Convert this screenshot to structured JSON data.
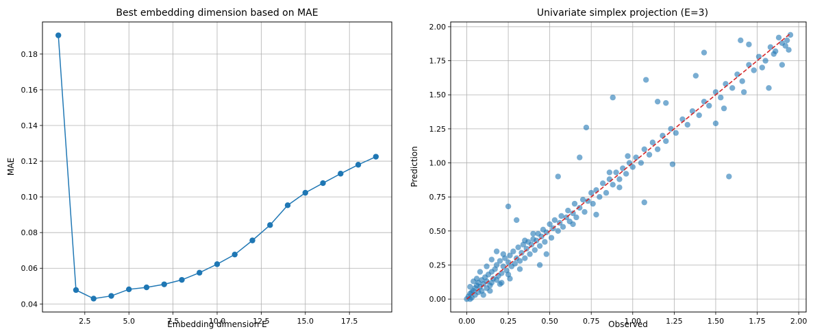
{
  "chart_data": [
    {
      "type": "line",
      "title": "Best embedding dimension based on MAE",
      "xlabel": "Embedding dimension E",
      "ylabel": "MAE",
      "xlim": [
        0.1,
        19.9
      ],
      "ylim": [
        0.0355,
        0.198
      ],
      "xticks": [
        2.5,
        5.0,
        7.5,
        10.0,
        12.5,
        15.0,
        17.5
      ],
      "xtick_labels": [
        "2.5",
        "5.0",
        "7.5",
        "10.0",
        "12.5",
        "15.0",
        "17.5"
      ],
      "yticks": [
        0.04,
        0.06,
        0.08,
        0.1,
        0.12,
        0.14,
        0.16,
        0.18
      ],
      "ytick_labels": [
        "0.04",
        "0.06",
        "0.08",
        "0.10",
        "0.12",
        "0.14",
        "0.16",
        "0.18"
      ],
      "grid": true,
      "color": "#1f77b4",
      "marker": "circle",
      "series": [
        {
          "x": [
            1,
            2,
            3,
            4,
            5,
            6,
            7,
            8,
            9,
            10,
            11,
            12,
            13,
            14,
            15,
            16,
            17,
            18,
            19
          ],
          "values": [
            0.1905,
            0.0478,
            0.043,
            0.0445,
            0.0482,
            0.0493,
            0.051,
            0.0535,
            0.0575,
            0.0623,
            0.0677,
            0.0756,
            0.0842,
            0.0953,
            0.1023,
            0.1077,
            0.113,
            0.118,
            0.1225
          ]
        }
      ]
    },
    {
      "type": "scatter",
      "title": "Univariate simplex projection (E=3)",
      "xlabel": "Observed",
      "ylabel": "Prediction",
      "xlim": [
        -0.097,
        2.045
      ],
      "ylim": [
        -0.095,
        2.035
      ],
      "xticks": [
        0.0,
        0.25,
        0.5,
        0.75,
        1.0,
        1.25,
        1.5,
        1.75,
        2.0
      ],
      "xtick_labels": [
        "0.00",
        "0.25",
        "0.50",
        "0.75",
        "1.00",
        "1.25",
        "1.50",
        "1.75",
        "2.00"
      ],
      "yticks": [
        0.0,
        0.25,
        0.5,
        0.75,
        1.0,
        1.25,
        1.5,
        1.75,
        2.0
      ],
      "ytick_labels": [
        "0.00",
        "0.25",
        "0.50",
        "0.75",
        "1.00",
        "1.25",
        "1.50",
        "1.75",
        "2.00"
      ],
      "grid": true,
      "point_color": "#1f77b4",
      "point_alpha": 0.6,
      "reference_line": {
        "x": [
          0.0,
          1.95
        ],
        "y": [
          0.0,
          1.95
        ],
        "color": "#d62728",
        "style": "dashed"
      },
      "points": [
        [
          0.0,
          0.0
        ],
        [
          0.01,
          0.02
        ],
        [
          0.02,
          0.0
        ],
        [
          0.02,
          0.04
        ],
        [
          0.03,
          0.05
        ],
        [
          0.03,
          0.01
        ],
        [
          0.04,
          0.06
        ],
        [
          0.05,
          0.03
        ],
        [
          0.05,
          0.08
        ],
        [
          0.06,
          0.1
        ],
        [
          0.07,
          0.05
        ],
        [
          0.07,
          0.12
        ],
        [
          0.08,
          0.09
        ],
        [
          0.09,
          0.14
        ],
        [
          0.09,
          0.06
        ],
        [
          0.1,
          0.11
        ],
        [
          0.11,
          0.16
        ],
        [
          0.12,
          0.08
        ],
        [
          0.12,
          0.13
        ],
        [
          0.13,
          0.18
        ],
        [
          0.14,
          0.1
        ],
        [
          0.15,
          0.2
        ],
        [
          0.15,
          0.12
        ],
        [
          0.16,
          0.15
        ],
        [
          0.17,
          0.22
        ],
        [
          0.18,
          0.14
        ],
        [
          0.18,
          0.25
        ],
        [
          0.19,
          0.17
        ],
        [
          0.2,
          0.28
        ],
        [
          0.21,
          0.19
        ],
        [
          0.21,
          0.12
        ],
        [
          0.22,
          0.24
        ],
        [
          0.23,
          0.3
        ],
        [
          0.24,
          0.21
        ],
        [
          0.25,
          0.27
        ],
        [
          0.25,
          0.18
        ],
        [
          0.26,
          0.32
        ],
        [
          0.27,
          0.24
        ],
        [
          0.28,
          0.35
        ],
        [
          0.29,
          0.26
        ],
        [
          0.3,
          0.3
        ],
        [
          0.31,
          0.38
        ],
        [
          0.32,
          0.28
        ],
        [
          0.33,
          0.34
        ],
        [
          0.34,
          0.4
        ],
        [
          0.35,
          0.3
        ],
        [
          0.36,
          0.37
        ],
        [
          0.37,
          0.42
        ],
        [
          0.38,
          0.33
        ],
        [
          0.39,
          0.4
        ],
        [
          0.4,
          0.44
        ],
        [
          0.41,
          0.36
        ],
        [
          0.42,
          0.43
        ],
        [
          0.43,
          0.48
        ],
        [
          0.44,
          0.39
        ],
        [
          0.45,
          0.46
        ],
        [
          0.46,
          0.51
        ],
        [
          0.47,
          0.42
        ],
        [
          0.48,
          0.49
        ],
        [
          0.5,
          0.55
        ],
        [
          0.51,
          0.45
        ],
        [
          0.52,
          0.52
        ],
        [
          0.53,
          0.58
        ],
        [
          0.55,
          0.5
        ],
        [
          0.56,
          0.56
        ],
        [
          0.57,
          0.61
        ],
        [
          0.58,
          0.53
        ],
        [
          0.6,
          0.6
        ],
        [
          0.61,
          0.65
        ],
        [
          0.62,
          0.57
        ],
        [
          0.64,
          0.63
        ],
        [
          0.65,
          0.7
        ],
        [
          0.66,
          0.6
        ],
        [
          0.68,
          0.67
        ],
        [
          0.7,
          0.73
        ],
        [
          0.71,
          0.64
        ],
        [
          0.73,
          0.72
        ],
        [
          0.75,
          0.78
        ],
        [
          0.76,
          0.7
        ],
        [
          0.78,
          0.8
        ],
        [
          0.8,
          0.75
        ],
        [
          0.82,
          0.85
        ],
        [
          0.84,
          0.78
        ],
        [
          0.86,
          0.88
        ],
        [
          0.88,
          0.84
        ],
        [
          0.9,
          0.93
        ],
        [
          0.92,
          0.88
        ],
        [
          0.94,
          0.96
        ],
        [
          0.96,
          0.92
        ],
        [
          0.98,
          1.0
        ],
        [
          1.0,
          0.97
        ],
        [
          1.02,
          1.04
        ],
        [
          1.05,
          1.0
        ],
        [
          1.07,
          1.1
        ],
        [
          1.1,
          1.06
        ],
        [
          1.12,
          1.15
        ],
        [
          1.15,
          1.1
        ],
        [
          1.18,
          1.2
        ],
        [
          1.2,
          1.16
        ],
        [
          1.23,
          1.25
        ],
        [
          1.26,
          1.22
        ],
        [
          1.3,
          1.32
        ],
        [
          1.33,
          1.28
        ],
        [
          1.36,
          1.38
        ],
        [
          1.4,
          1.35
        ],
        [
          1.43,
          1.45
        ],
        [
          1.46,
          1.42
        ],
        [
          1.5,
          1.52
        ],
        [
          1.53,
          1.48
        ],
        [
          1.56,
          1.58
        ],
        [
          1.6,
          1.55
        ],
        [
          1.63,
          1.65
        ],
        [
          1.66,
          1.6
        ],
        [
          1.7,
          1.72
        ],
        [
          1.73,
          1.68
        ],
        [
          1.76,
          1.78
        ],
        [
          1.8,
          1.75
        ],
        [
          1.83,
          1.85
        ],
        [
          1.86,
          1.82
        ],
        [
          1.9,
          1.88
        ],
        [
          1.93,
          1.9
        ],
        [
          1.95,
          1.94
        ],
        [
          0.25,
          0.68
        ],
        [
          0.3,
          0.58
        ],
        [
          0.55,
          0.9
        ],
        [
          0.68,
          1.04
        ],
        [
          0.72,
          1.26
        ],
        [
          0.88,
          1.48
        ],
        [
          1.08,
          1.61
        ],
        [
          1.43,
          1.81
        ],
        [
          1.38,
          1.64
        ],
        [
          1.58,
          0.9
        ],
        [
          1.07,
          0.71
        ],
        [
          1.24,
          0.99
        ],
        [
          1.5,
          1.29
        ],
        [
          1.65,
          1.9
        ],
        [
          1.7,
          1.87
        ],
        [
          1.9,
          1.72
        ],
        [
          1.88,
          1.92
        ],
        [
          1.94,
          1.83
        ],
        [
          1.92,
          1.86
        ],
        [
          1.78,
          1.7
        ],
        [
          1.85,
          1.8
        ],
        [
          1.82,
          1.55
        ],
        [
          1.67,
          1.52
        ],
        [
          1.55,
          1.4
        ],
        [
          1.15,
          1.45
        ],
        [
          1.2,
          1.44
        ],
        [
          0.97,
          1.05
        ],
        [
          0.92,
          0.82
        ],
        [
          0.86,
          0.93
        ],
        [
          0.78,
          0.62
        ],
        [
          0.64,
          0.55
        ],
        [
          0.48,
          0.33
        ],
        [
          0.44,
          0.25
        ],
        [
          0.4,
          0.48
        ],
        [
          0.35,
          0.43
        ],
        [
          0.22,
          0.33
        ],
        [
          0.18,
          0.35
        ],
        [
          0.12,
          0.24
        ],
        [
          0.15,
          0.29
        ],
        [
          0.08,
          0.2
        ],
        [
          0.06,
          0.15
        ],
        [
          0.04,
          0.13
        ],
        [
          0.02,
          0.09
        ],
        [
          0.1,
          0.03
        ],
        [
          0.14,
          0.06
        ],
        [
          0.2,
          0.11
        ],
        [
          0.26,
          0.15
        ],
        [
          0.32,
          0.22
        ]
      ]
    }
  ]
}
